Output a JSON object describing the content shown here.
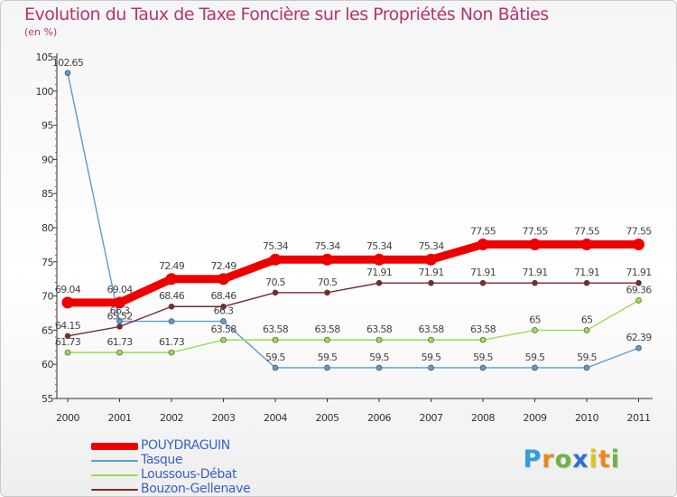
{
  "title": "Evolution du Taux de Taxe Foncière sur les Propriétés Non Bâties",
  "subtitle": "(en %)",
  "brand": {
    "letters": [
      "P",
      "r",
      "o",
      "x",
      "i",
      "t",
      "i"
    ],
    "colors": [
      "#2f9fd8",
      "#e88a1a",
      "#6cb33f",
      "#2f6fd8",
      "#e0c21a",
      "#e88a1a",
      "#6cb33f"
    ]
  },
  "chart_data": {
    "type": "line",
    "title": "Evolution du Taux de Taxe Foncière sur les Propriétés Non Bâties",
    "ylabel": "(en %)",
    "xlabel": "",
    "ylim": [
      55,
      105
    ],
    "yticks": [
      55,
      60,
      65,
      70,
      75,
      80,
      85,
      90,
      95,
      100,
      105
    ],
    "categories": [
      "2000",
      "2001",
      "2002",
      "2003",
      "2004",
      "2005",
      "2006",
      "2007",
      "2008",
      "2009",
      "2010",
      "2011"
    ],
    "series": [
      {
        "name": "POUYDRAGUIN",
        "color": "#ee0000",
        "values": [
          69.04,
          69.04,
          72.49,
          72.49,
          75.34,
          75.34,
          75.34,
          75.34,
          77.55,
          77.55,
          77.55,
          77.55
        ],
        "labels": [
          "69.04",
          "69.04",
          "72.49",
          "72.49",
          "75.34",
          "75.34",
          "75.34",
          "75.34",
          "77.55",
          "77.55",
          "77.55",
          "77.55"
        ],
        "emphasis": true
      },
      {
        "name": "Tasque",
        "color": "#5a9bd4",
        "values": [
          102.65,
          66.3,
          66.3,
          66.3,
          59.5,
          59.5,
          59.5,
          59.5,
          59.5,
          59.5,
          59.5,
          62.39
        ],
        "labels": [
          "102.65",
          "66.3",
          "",
          "66.3",
          "59.5",
          "59.5",
          "59.5",
          "59.5",
          "59.5",
          "59.5",
          "59.5",
          "62.39"
        ],
        "emphasis": false
      },
      {
        "name": "Loussous-Débat",
        "color": "#99dd55",
        "values": [
          61.73,
          61.73,
          61.73,
          63.58,
          63.58,
          63.58,
          63.58,
          63.58,
          63.58,
          65,
          65,
          69.36
        ],
        "labels": [
          "61.73",
          "61.73",
          "61.73",
          "63.58",
          "63.58",
          "63.58",
          "63.58",
          "63.58",
          "63.58",
          "65",
          "65",
          "69.36"
        ],
        "emphasis": false
      },
      {
        "name": "Bouzon-Gellenave",
        "color": "#7a2a2a",
        "values": [
          64.15,
          65.52,
          68.46,
          68.46,
          70.5,
          70.5,
          71.91,
          71.91,
          71.91,
          71.91,
          71.91,
          71.91
        ],
        "labels": [
          "64.15",
          "65.52",
          "68.46",
          "68.46",
          "70.5",
          "70.5",
          "71.91",
          "71.91",
          "71.91",
          "71.91",
          "71.91",
          "71.91"
        ],
        "emphasis": false
      }
    ],
    "legend_position": "bottom-left",
    "grid": false
  }
}
